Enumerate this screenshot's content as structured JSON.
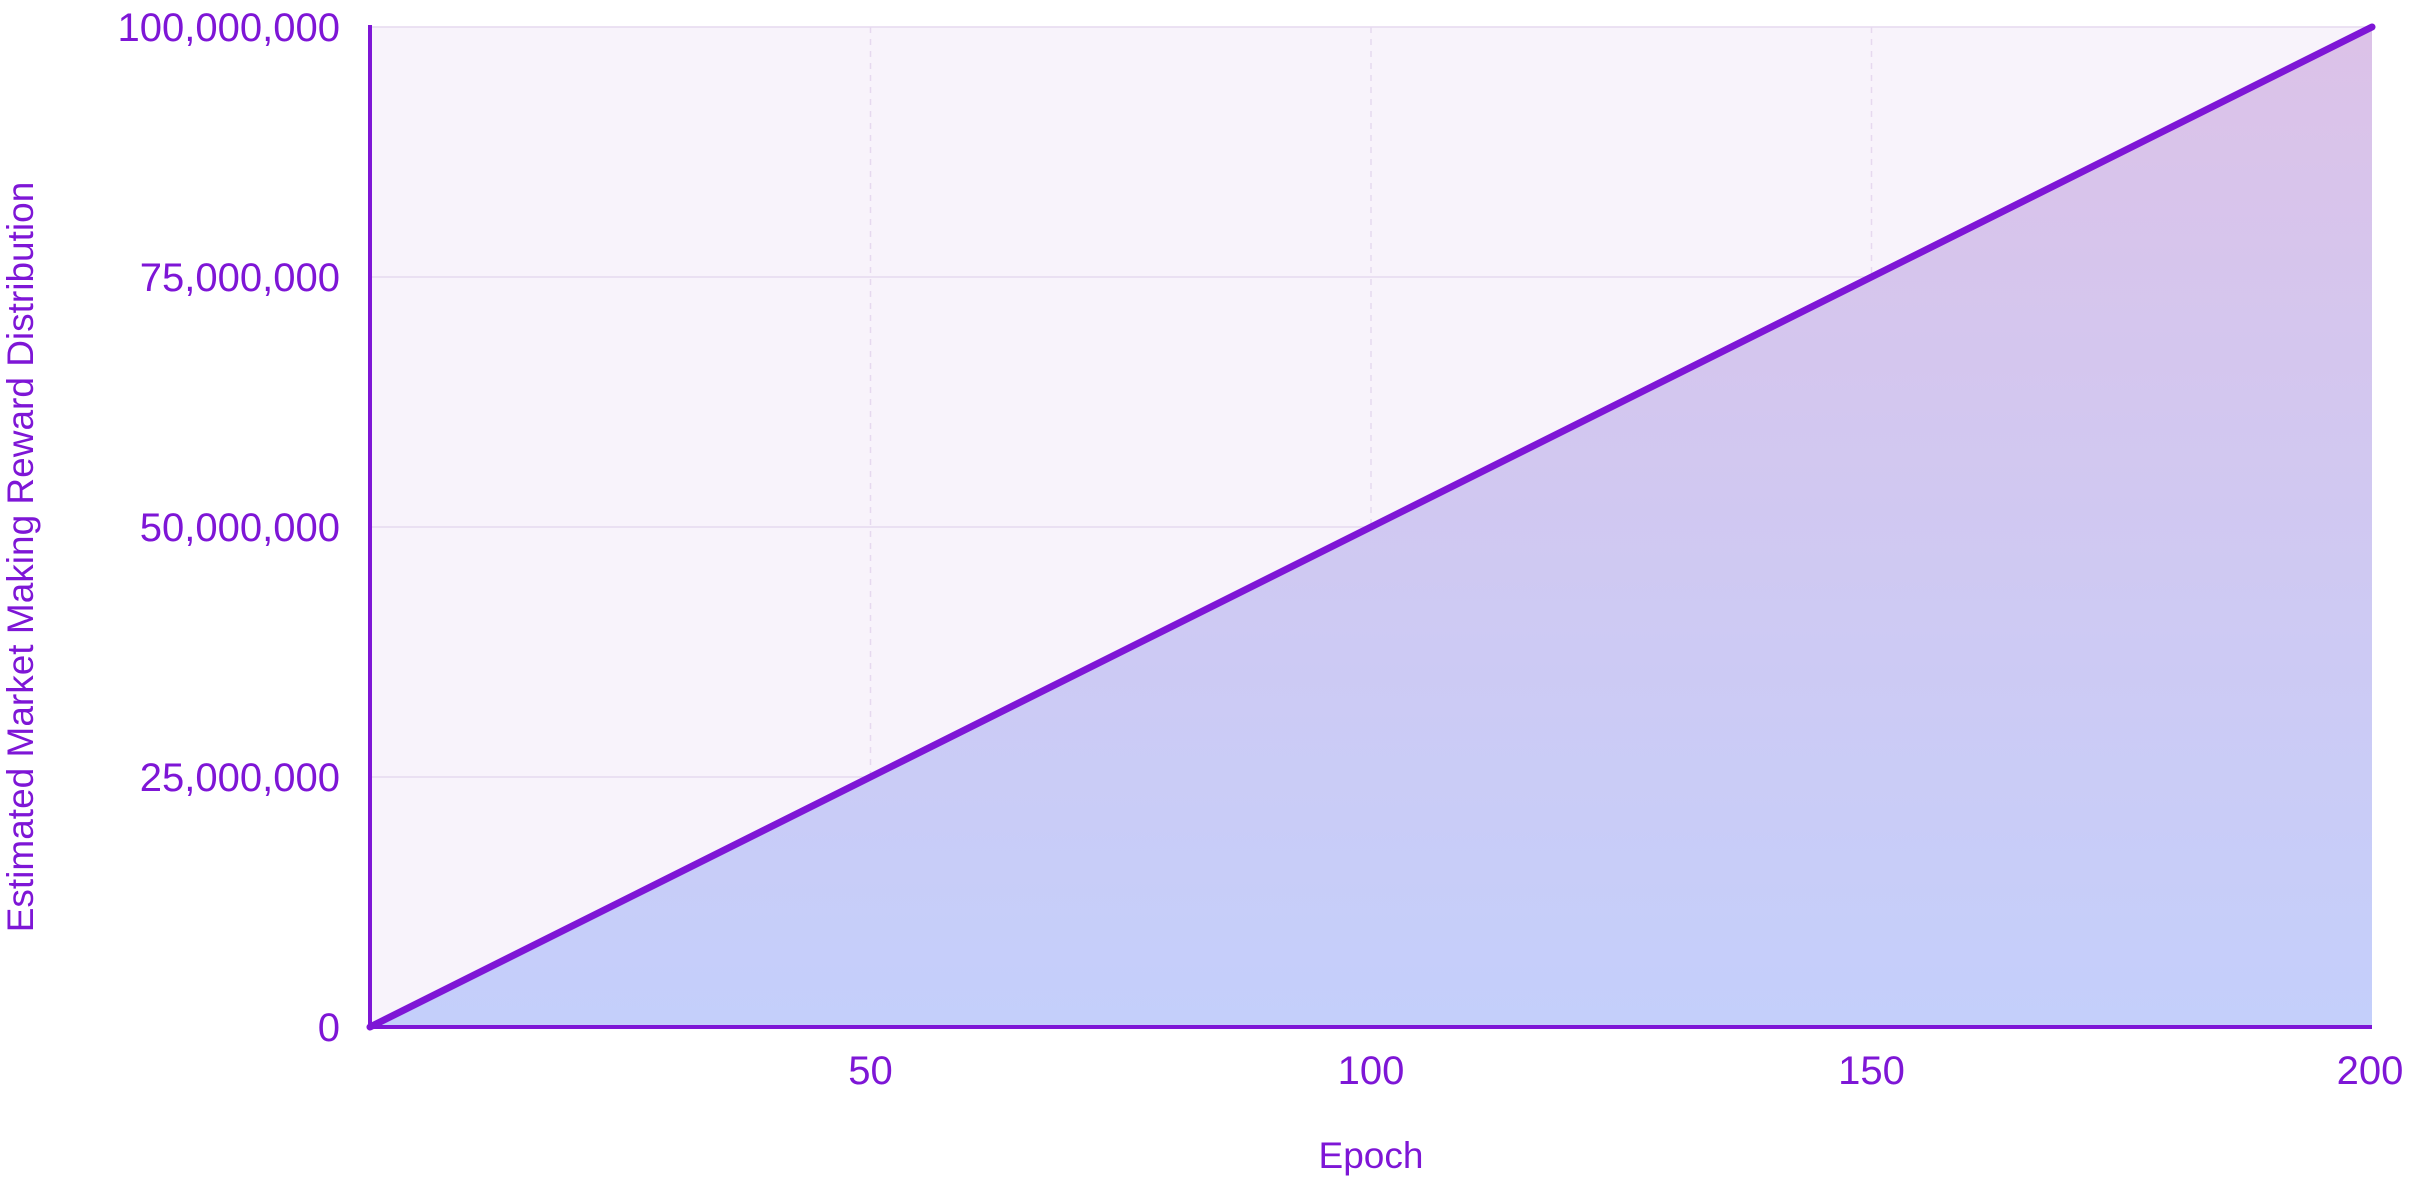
{
  "colors": {
    "accent": "#7e16d6",
    "plot_background": "#f8f3fb",
    "fill_top": "#dcc2e8",
    "fill_bottom": "#c4cffb",
    "grid": "#e6d9ef"
  },
  "chart_data": {
    "type": "area",
    "title": "",
    "xlabel": "Epoch",
    "ylabel": "Estimated Market Making Reward Distribution",
    "x": [
      0,
      200
    ],
    "series": [
      {
        "values": [
          0,
          100000000
        ]
      }
    ],
    "xlim": [
      0,
      200
    ],
    "ylim": [
      0,
      100000000
    ],
    "x_ticks": [
      50,
      100,
      150,
      200
    ],
    "x_tick_labels": [
      "50",
      "100",
      "150",
      "200"
    ],
    "y_ticks": [
      0,
      25000000,
      50000000,
      75000000,
      100000000
    ],
    "y_tick_labels": [
      "0",
      "25,000,000",
      "50,000,000",
      "75,000,000",
      "100,000,000"
    ],
    "grid": true,
    "legend": "none"
  }
}
